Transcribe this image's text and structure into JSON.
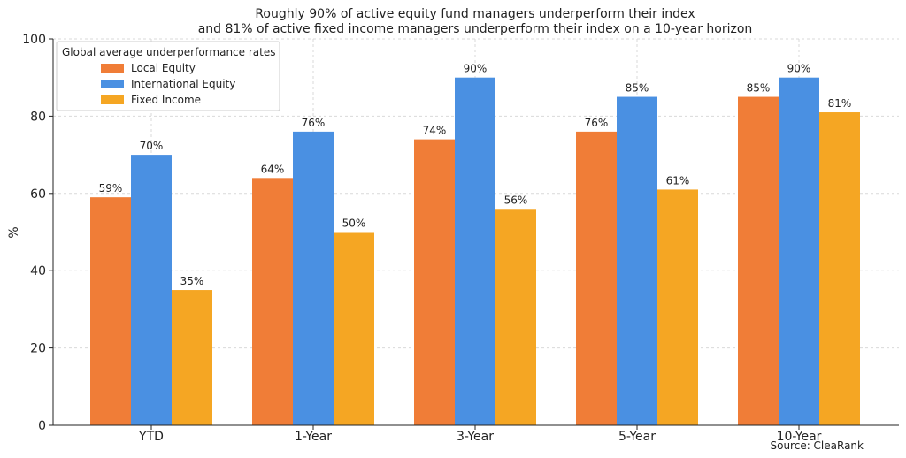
{
  "chart_data": {
    "type": "bar",
    "title": "Roughly 90% of active equity fund managers underperform their index",
    "subtitle": "and 81% of active fixed income managers underperform their index on a 10-year horizon",
    "xlabel": "",
    "ylabel": "%",
    "ylim": [
      0,
      100
    ],
    "yticks": [
      0,
      20,
      40,
      60,
      80,
      100
    ],
    "grid": true,
    "categories": [
      "YTD",
      "1-Year",
      "3-Year",
      "5-Year",
      "10-Year"
    ],
    "series": [
      {
        "name": "Local Equity",
        "color": "#f07d37",
        "values": [
          59,
          64,
          74,
          76,
          85
        ],
        "labels": [
          "59%",
          "64%",
          "74%",
          "76%",
          "85%"
        ]
      },
      {
        "name": "International Equity",
        "color": "#4a90e2",
        "values": [
          70,
          76,
          90,
          85,
          90
        ],
        "labels": [
          "70%",
          "76%",
          "90%",
          "85%",
          "90%"
        ]
      },
      {
        "name": "Fixed Income",
        "color": "#f5a623",
        "values": [
          35,
          50,
          56,
          61,
          81
        ],
        "labels": [
          "35%",
          "50%",
          "56%",
          "61%",
          "81%"
        ]
      }
    ],
    "legend": {
      "title": "Global average underperformance rates",
      "position": "top-left"
    },
    "source": "Source: CleaRank"
  }
}
